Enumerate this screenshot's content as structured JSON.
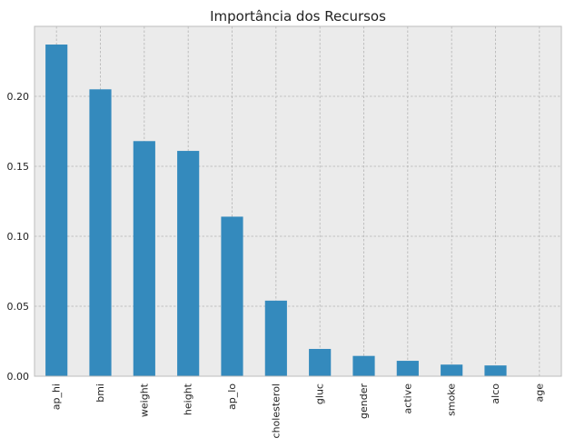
{
  "chart_data": {
    "type": "bar",
    "title": "Importância dos Recursos",
    "xlabel": "",
    "ylabel": "",
    "categories": [
      "ap_hi",
      "bmi",
      "weight",
      "height",
      "ap_lo",
      "cholesterol",
      "gluc",
      "gender",
      "active",
      "smoke",
      "alco",
      "age"
    ],
    "values": [
      0.237,
      0.205,
      0.168,
      0.161,
      0.114,
      0.054,
      0.0195,
      0.0145,
      0.011,
      0.0083,
      0.0077,
      0.0003
    ],
    "ylim": [
      0,
      0.25
    ],
    "yticks": [
      0.0,
      0.05,
      0.1,
      0.15,
      0.2
    ],
    "ytick_labels": [
      "0.00",
      "0.05",
      "0.10",
      "0.15",
      "0.20"
    ],
    "grid": true,
    "legend": "none",
    "bar_color": "#348abd",
    "background_color": "#ebebeb",
    "grid_color": "#b3b3b3"
  }
}
